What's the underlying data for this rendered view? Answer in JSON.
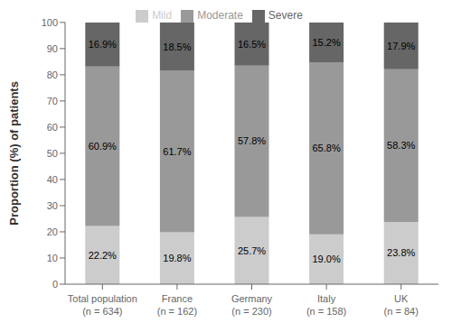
{
  "chart_data": {
    "type": "bar",
    "stacked": true,
    "data_labels": true,
    "grid": false,
    "legend": "top",
    "categories": [
      "Total population\n(n = 634)",
      "France\n(n = 162)",
      "Germany\n(n = 230)",
      "Italy\n(n = 158)",
      "UK\n(n = 84)"
    ],
    "series": [
      {
        "name": "Mild",
        "color": "#cccccc",
        "values": [
          22.2,
          19.8,
          25.7,
          19.0,
          23.8
        ],
        "value_labels": [
          "22.2%",
          "19.8%",
          "25.7%",
          "19.0%",
          "23.8%"
        ]
      },
      {
        "name": "Moderate",
        "color": "#999999",
        "values": [
          60.9,
          61.7,
          57.8,
          65.8,
          58.3
        ],
        "value_labels": [
          "60.9%",
          "61.7%",
          "57.8%",
          "65.8%",
          "58.3%"
        ]
      },
      {
        "name": "Severe",
        "color": "#666666",
        "values": [
          16.9,
          18.5,
          16.5,
          15.2,
          17.9
        ],
        "value_labels": [
          "16.9%",
          "18.5%",
          "16.5%",
          "15.2%",
          "17.9%"
        ]
      }
    ],
    "ylabel": "Proportion (%) of patients",
    "ylim": [
      0,
      100
    ],
    "yticks": [
      0,
      10,
      20,
      30,
      40,
      50,
      60,
      70,
      80,
      90,
      100
    ]
  }
}
